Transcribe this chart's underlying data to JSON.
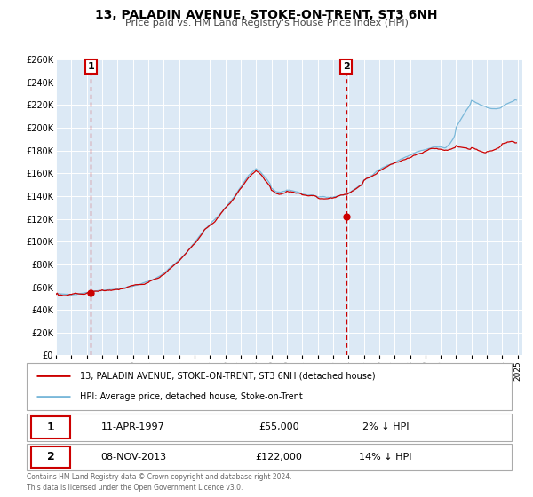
{
  "title": "13, PALADIN AVENUE, STOKE-ON-TRENT, ST3 6NH",
  "subtitle": "Price paid vs. HM Land Registry's House Price Index (HPI)",
  "ylim": [
    0,
    260000
  ],
  "yticks": [
    0,
    20000,
    40000,
    60000,
    80000,
    100000,
    120000,
    140000,
    160000,
    180000,
    200000,
    220000,
    240000,
    260000
  ],
  "xlim_start": 1995.0,
  "xlim_end": 2025.3,
  "sale1_year": 1997.278,
  "sale1_price": 55000,
  "sale1_label": "1",
  "sale2_year": 2013.856,
  "sale2_price": 122000,
  "sale2_label": "2",
  "hpi_line_color": "#7ab8d9",
  "price_line_color": "#cc0000",
  "vline_color": "#cc0000",
  "plot_bg_color": "#dce9f5",
  "legend_line1": "13, PALADIN AVENUE, STOKE-ON-TRENT, ST3 6NH (detached house)",
  "legend_line2": "HPI: Average price, detached house, Stoke-on-Trent",
  "annotation1_date": "11-APR-1997",
  "annotation1_price": "£55,000",
  "annotation1_hpi": "2% ↓ HPI",
  "annotation2_date": "08-NOV-2013",
  "annotation2_price": "£122,000",
  "annotation2_hpi": "14% ↓ HPI",
  "footer1": "Contains HM Land Registry data © Crown copyright and database right 2024.",
  "footer2": "This data is licensed under the Open Government Licence v3.0.",
  "hpi_years": [
    1995.0,
    1995.083,
    1995.167,
    1995.25,
    1995.333,
    1995.417,
    1995.5,
    1995.583,
    1995.667,
    1995.75,
    1995.833,
    1995.917,
    1996.0,
    1996.083,
    1996.167,
    1996.25,
    1996.333,
    1996.417,
    1996.5,
    1996.583,
    1996.667,
    1996.75,
    1996.833,
    1996.917,
    1997.0,
    1997.083,
    1997.167,
    1997.25,
    1997.333,
    1997.417,
    1997.5,
    1997.583,
    1997.667,
    1997.75,
    1997.833,
    1997.917,
    1998.0,
    1998.083,
    1998.167,
    1998.25,
    1998.333,
    1998.417,
    1998.5,
    1998.583,
    1998.667,
    1998.75,
    1998.833,
    1998.917,
    1999.0,
    1999.083,
    1999.167,
    1999.25,
    1999.333,
    1999.417,
    1999.5,
    1999.583,
    1999.667,
    1999.75,
    1999.833,
    1999.917,
    2000.0,
    2000.083,
    2000.167,
    2000.25,
    2000.333,
    2000.417,
    2000.5,
    2000.583,
    2000.667,
    2000.75,
    2000.833,
    2000.917,
    2001.0,
    2001.083,
    2001.167,
    2001.25,
    2001.333,
    2001.417,
    2001.5,
    2001.583,
    2001.667,
    2001.75,
    2001.833,
    2001.917,
    2002.0,
    2002.083,
    2002.167,
    2002.25,
    2002.333,
    2002.417,
    2002.5,
    2002.583,
    2002.667,
    2002.75,
    2002.833,
    2002.917,
    2003.0,
    2003.083,
    2003.167,
    2003.25,
    2003.333,
    2003.417,
    2003.5,
    2003.583,
    2003.667,
    2003.75,
    2003.833,
    2003.917,
    2004.0,
    2004.083,
    2004.167,
    2004.25,
    2004.333,
    2004.417,
    2004.5,
    2004.583,
    2004.667,
    2004.75,
    2004.833,
    2004.917,
    2005.0,
    2005.083,
    2005.167,
    2005.25,
    2005.333,
    2005.417,
    2005.5,
    2005.583,
    2005.667,
    2005.75,
    2005.833,
    2005.917,
    2006.0,
    2006.083,
    2006.167,
    2006.25,
    2006.333,
    2006.417,
    2006.5,
    2006.583,
    2006.667,
    2006.75,
    2006.833,
    2006.917,
    2007.0,
    2007.083,
    2007.167,
    2007.25,
    2007.333,
    2007.417,
    2007.5,
    2007.583,
    2007.667,
    2007.75,
    2007.833,
    2007.917,
    2008.0,
    2008.083,
    2008.167,
    2008.25,
    2008.333,
    2008.417,
    2008.5,
    2008.583,
    2008.667,
    2008.75,
    2008.833,
    2008.917,
    2009.0,
    2009.083,
    2009.167,
    2009.25,
    2009.333,
    2009.417,
    2009.5,
    2009.583,
    2009.667,
    2009.75,
    2009.833,
    2009.917,
    2010.0,
    2010.083,
    2010.167,
    2010.25,
    2010.333,
    2010.417,
    2010.5,
    2010.583,
    2010.667,
    2010.75,
    2010.833,
    2010.917,
    2011.0,
    2011.083,
    2011.167,
    2011.25,
    2011.333,
    2011.417,
    2011.5,
    2011.583,
    2011.667,
    2011.75,
    2011.833,
    2011.917,
    2012.0,
    2012.083,
    2012.167,
    2012.25,
    2012.333,
    2012.417,
    2012.5,
    2012.583,
    2012.667,
    2012.75,
    2012.833,
    2012.917,
    2013.0,
    2013.083,
    2013.167,
    2013.25,
    2013.333,
    2013.417,
    2013.5,
    2013.583,
    2013.667,
    2013.75,
    2013.833,
    2013.917,
    2014.0,
    2014.083,
    2014.167,
    2014.25,
    2014.333,
    2014.417,
    2014.5,
    2014.583,
    2014.667,
    2014.75,
    2014.833,
    2014.917,
    2015.0,
    2015.083,
    2015.167,
    2015.25,
    2015.333,
    2015.417,
    2015.5,
    2015.583,
    2015.667,
    2015.75,
    2015.833,
    2015.917,
    2016.0,
    2016.083,
    2016.167,
    2016.25,
    2016.333,
    2016.417,
    2016.5,
    2016.583,
    2016.667,
    2016.75,
    2016.833,
    2016.917,
    2017.0,
    2017.083,
    2017.167,
    2017.25,
    2017.333,
    2017.417,
    2017.5,
    2017.583,
    2017.667,
    2017.75,
    2017.833,
    2017.917,
    2018.0,
    2018.083,
    2018.167,
    2018.25,
    2018.333,
    2018.417,
    2018.5,
    2018.583,
    2018.667,
    2018.75,
    2018.833,
    2018.917,
    2019.0,
    2019.083,
    2019.167,
    2019.25,
    2019.333,
    2019.417,
    2019.5,
    2019.583,
    2019.667,
    2019.75,
    2019.833,
    2019.917,
    2020.0,
    2020.083,
    2020.167,
    2020.25,
    2020.333,
    2020.417,
    2020.5,
    2020.583,
    2020.667,
    2020.75,
    2020.833,
    2020.917,
    2021.0,
    2021.083,
    2021.167,
    2021.25,
    2021.333,
    2021.417,
    2021.5,
    2021.583,
    2021.667,
    2021.75,
    2021.833,
    2021.917,
    2022.0,
    2022.083,
    2022.167,
    2022.25,
    2022.333,
    2022.417,
    2022.5,
    2022.583,
    2022.667,
    2022.75,
    2022.833,
    2022.917,
    2023.0,
    2023.083,
    2023.167,
    2023.25,
    2023.333,
    2023.417,
    2023.5,
    2023.583,
    2023.667,
    2023.75,
    2023.833,
    2023.917,
    2024.0,
    2024.083,
    2024.167,
    2024.25,
    2024.333,
    2024.417,
    2024.5,
    2024.583,
    2024.667,
    2024.75,
    2024.833,
    2024.917
  ]
}
